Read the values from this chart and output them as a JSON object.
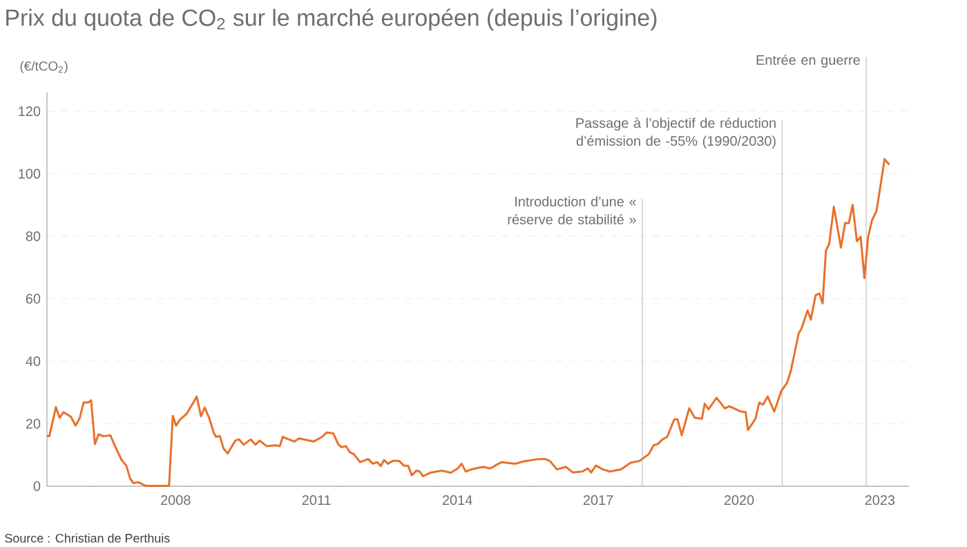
{
  "chart_data": {
    "type": "line",
    "title": "Prix du quota de CO$_{2}$ sur le marché européen (depuis l’origine)",
    "ylabel": "(€/tCO$_{2}$)",
    "x": [
      2005.26,
      2005.31,
      2005.45,
      2005.53,
      2005.61,
      2005.77,
      2005.87,
      2005.96,
      2006.04,
      2006.14,
      2006.2,
      2006.28,
      2006.36,
      2006.46,
      2006.61,
      2006.71,
      2006.85,
      2006.95,
      2007.03,
      2007.1,
      2007.2,
      2007.37,
      2007.86,
      2007.94,
      2008.01,
      2008.1,
      2008.23,
      2008.35,
      2008.45,
      2008.54,
      2008.62,
      2008.72,
      2008.81,
      2008.86,
      2008.94,
      2009.02,
      2009.11,
      2009.27,
      2009.35,
      2009.45,
      2009.6,
      2009.7,
      2009.79,
      2009.94,
      2010.14,
      2010.22,
      2010.28,
      2010.43,
      2010.53,
      2010.63,
      2010.82,
      2010.94,
      2011.12,
      2011.22,
      2011.36,
      2011.46,
      2011.53,
      2011.63,
      2011.71,
      2011.8,
      2011.93,
      2012.1,
      2012.2,
      2012.29,
      2012.37,
      2012.44,
      2012.52,
      2012.62,
      2012.76,
      2012.86,
      2012.95,
      2013.03,
      2013.13,
      2013.2,
      2013.27,
      2013.42,
      2013.67,
      2013.86,
      2014.01,
      2014.09,
      2014.18,
      2014.3,
      2014.55,
      2014.7,
      2014.94,
      2015.24,
      2015.43,
      2015.73,
      2015.87,
      2015.97,
      2016.12,
      2016.31,
      2016.46,
      2016.66,
      2016.78,
      2016.85,
      2016.95,
      2017.1,
      2017.25,
      2017.49,
      2017.69,
      2017.88,
      2018.08,
      2018.18,
      2018.27,
      2018.37,
      2018.47,
      2018.62,
      2018.69,
      2018.78,
      2018.94,
      2019.06,
      2019.21,
      2019.27,
      2019.35,
      2019.52,
      2019.7,
      2019.79,
      2020.04,
      2020.14,
      2020.19,
      2020.35,
      2020.43,
      2020.51,
      2020.61,
      2020.75,
      2020.9,
      2021.02,
      2021.1,
      2021.27,
      2021.33,
      2021.46,
      2021.53,
      2021.63,
      2021.71,
      2021.78,
      2021.85,
      2021.92,
      2022.02,
      2022.17,
      2022.26,
      2022.34,
      2022.42,
      2022.51,
      2022.59,
      2022.67,
      2022.75,
      2022.83,
      2022.93,
      2023.1,
      2023.2
    ],
    "series": [
      {
        "color": "#e8702a",
        "values": [
          16,
          16,
          25.3,
          21.9,
          23.7,
          22.2,
          19.4,
          21.9,
          26.8,
          26.8,
          27.5,
          13.5,
          16.6,
          16,
          16.3,
          12.8,
          8.4,
          6.6,
          2.5,
          1,
          1.3,
          0.1,
          0.1,
          22.5,
          19.4,
          21.4,
          23.1,
          26.1,
          28.7,
          22.4,
          25.2,
          21.6,
          17.2,
          15.8,
          16.1,
          12.1,
          10.5,
          14.6,
          15,
          13.3,
          15,
          13.3,
          14.6,
          12.8,
          13.1,
          12.8,
          15.8,
          14.9,
          14.3,
          15.3,
          14.7,
          14.3,
          15.8,
          17.2,
          16.9,
          13.5,
          12.5,
          12.8,
          10.9,
          10.2,
          7.7,
          8.7,
          7.2,
          7.7,
          6.5,
          8.4,
          7.2,
          8.1,
          8.1,
          6.6,
          6.6,
          3.5,
          5,
          4.7,
          3.2,
          4.3,
          5,
          4.3,
          5.7,
          7.2,
          4.7,
          5.4,
          6.2,
          5.7,
          7.7,
          7.2,
          8,
          8.7,
          8.7,
          8.1,
          5.4,
          6.2,
          4.4,
          4.7,
          5.7,
          4.4,
          6.6,
          5.4,
          4.7,
          5.4,
          7.5,
          8.1,
          10.3,
          13.1,
          13.5,
          15,
          15.8,
          21.4,
          21.4,
          16.3,
          25,
          21.9,
          21.6,
          26.4,
          24.6,
          28.3,
          24.9,
          25.6,
          23.9,
          23.7,
          18,
          21.6,
          26.8,
          26.1,
          28.7,
          23.9,
          30.5,
          33,
          36.7,
          48.9,
          50.4,
          56.3,
          53.3,
          61.1,
          61.7,
          58.5,
          75.4,
          77.6,
          89.4,
          76.4,
          84.2,
          84.2,
          90.1,
          78.4,
          79.8,
          66.6,
          79.8,
          85,
          88.2,
          104.7,
          102.9
        ]
      }
    ],
    "xlim": [
      2005.26,
      2023.62
    ],
    "ylim": [
      0,
      126
    ],
    "xticks": [
      2008,
      2011,
      2014,
      2017,
      2020,
      2023
    ],
    "yticks": [
      0,
      20,
      40,
      60,
      80,
      100,
      120
    ],
    "grid": "y",
    "line_style": "solid",
    "ref_lines": [
      {
        "axis": "x",
        "value": 2017.94,
        "label": "Introduction d’une « réserve de stabilité »",
        "color": "#c8c8c8"
      },
      {
        "axis": "x",
        "value": 2020.92,
        "label": "Passage à l’objectif de réduction d’émission de -55% (1990/2030)",
        "color": "#c8c8c8"
      },
      {
        "axis": "x",
        "value": 2022.71,
        "label": "Entrée en guerre",
        "color": "#c8c8c8"
      }
    ],
    "annotations": [
      "Source : Christian de Perthuis"
    ]
  }
}
